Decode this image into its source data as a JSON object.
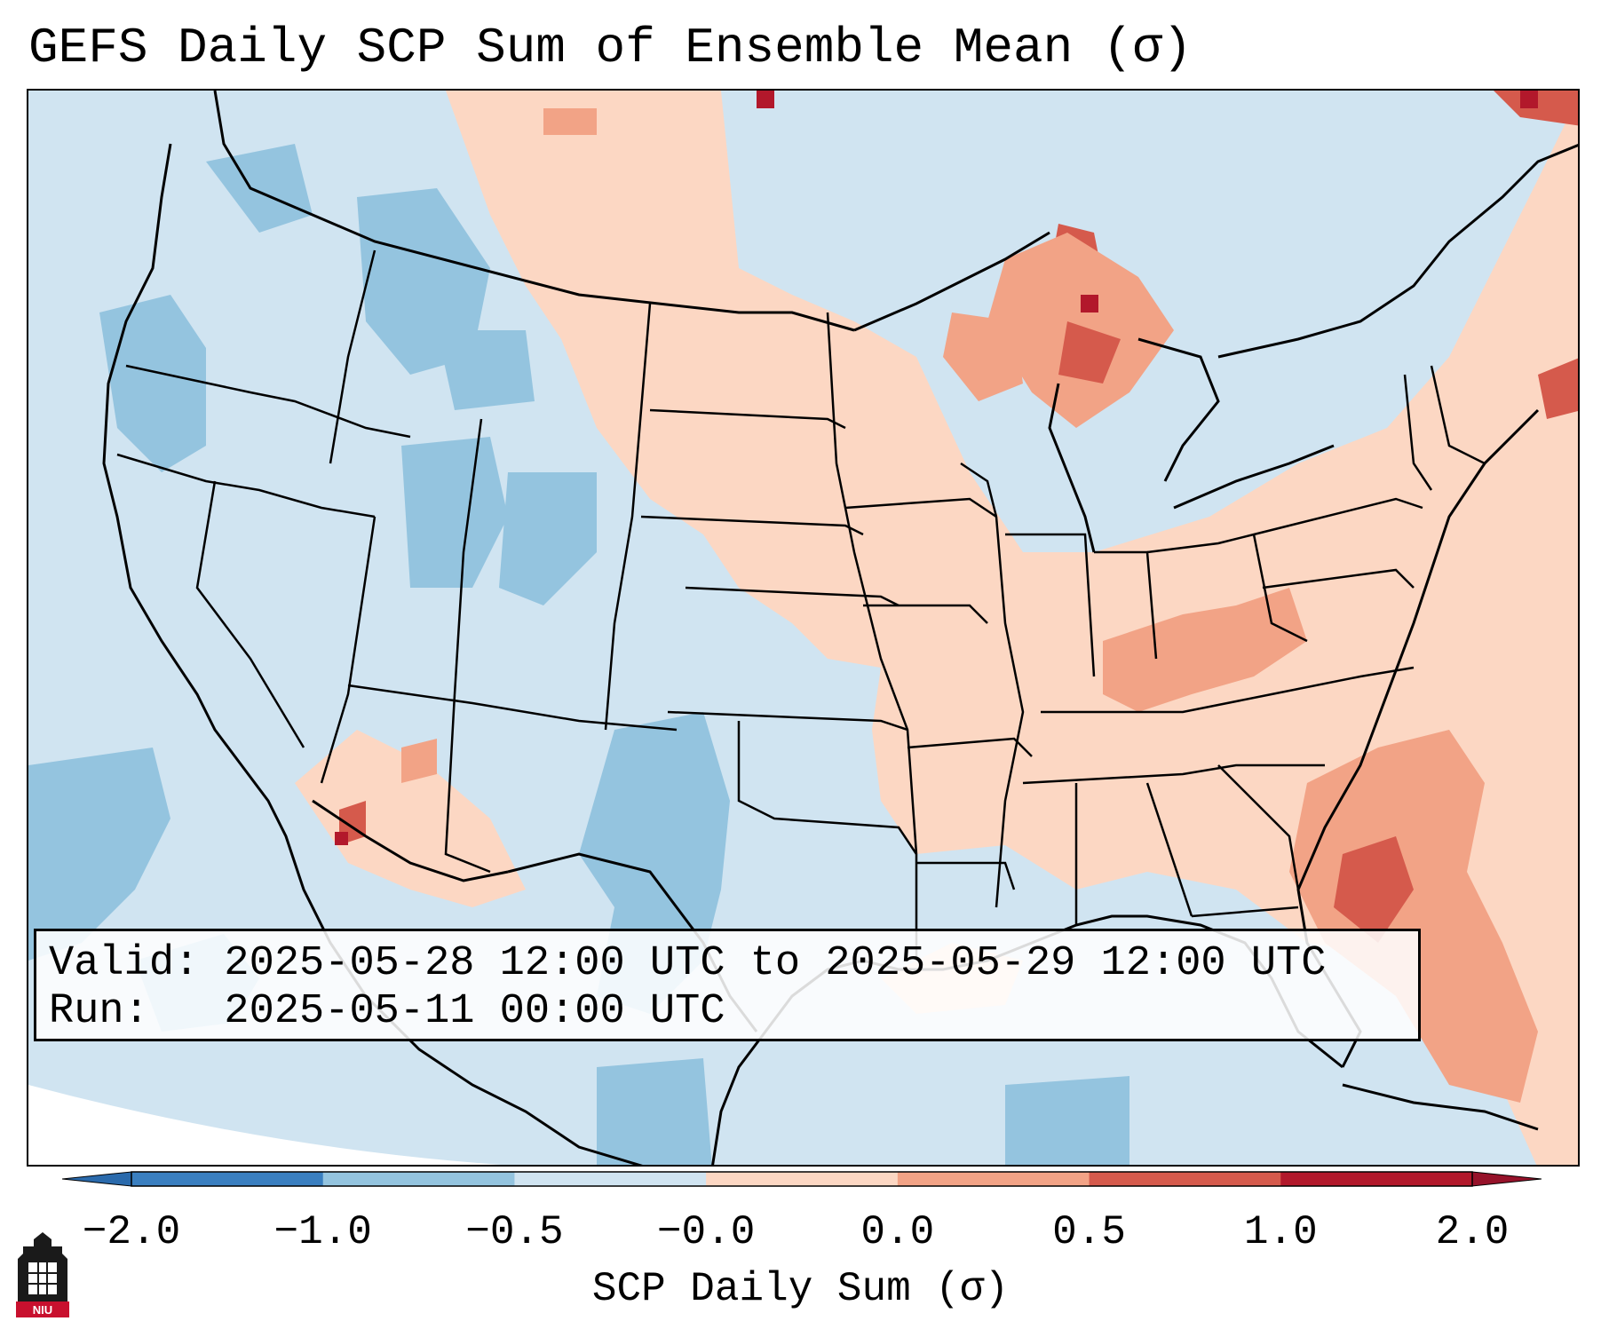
{
  "title": "GEFS Daily SCP Sum of Ensemble Mean (σ)",
  "info": {
    "valid_line": "Valid: 2025-05-28 12:00 UTC to 2025-05-29 12:00 UTC",
    "run_line": "Run:   2025-05-11 00:00 UTC"
  },
  "colorbar": {
    "label": "SCP Daily Sum (σ)",
    "ticks": [
      "−2.0",
      "−1.0",
      "−0.5",
      "−0.0",
      "0.0",
      "0.5",
      "1.0",
      "2.0"
    ],
    "colors": [
      "#3a7fc0",
      "#94c4df",
      "#d0e4f1",
      "#fcd7c3",
      "#f2a386",
      "#d55a4c",
      "#b2182b"
    ],
    "under_color": "#2a6aac",
    "over_color": "#96122a"
  },
  "map": {
    "background_color": "#d0e4f1",
    "border_color": "#000000",
    "region": "Contiguous United States"
  },
  "logo": {
    "text": "NIU",
    "seal_color": "#c8102e"
  }
}
